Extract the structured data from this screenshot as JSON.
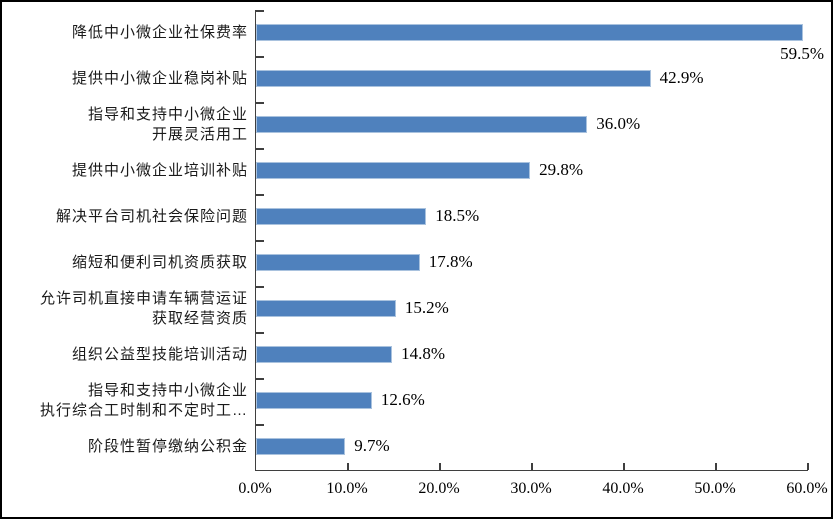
{
  "chart_data": {
    "type": "bar",
    "orientation": "horizontal",
    "title": "",
    "xlabel": "",
    "ylabel": "",
    "xlim": [
      0,
      60
    ],
    "grid": false,
    "legend": null,
    "categories": [
      "降低中小微企业社保费率",
      "提供中小微企业稳岗补贴",
      "指导和支持中小微企业\n开展灵活用工",
      "提供中小微企业培训补贴",
      "解决平台司机社会保险问题",
      "缩短和便利司机资质获取",
      "允许司机直接申请车辆营运证\n获取经营资质",
      "组织公益型技能培训活动",
      "指导和支持中小微企业\n执行综合工时制和不定时工…",
      "阶段性暂停缴纳公积金"
    ],
    "values": [
      59.5,
      42.9,
      36.0,
      29.8,
      18.5,
      17.8,
      15.2,
      14.8,
      12.6,
      9.7
    ],
    "value_labels": [
      "59.5%",
      "42.9%",
      "36.0%",
      "29.8%",
      "18.5%",
      "17.8%",
      "15.2%",
      "14.8%",
      "12.6%",
      "9.7%"
    ],
    "x_ticks": [
      "0.0%",
      "10.0%",
      "20.0%",
      "30.0%",
      "40.0%",
      "50.0%",
      "60.0%"
    ],
    "x_tick_values": [
      0,
      10,
      20,
      30,
      40,
      50,
      60
    ],
    "colors": {
      "bar_fill": "#4f81bd",
      "bar_border": "#a9c2de",
      "axis": "#3f3f3f",
      "text": "#000000"
    }
  }
}
